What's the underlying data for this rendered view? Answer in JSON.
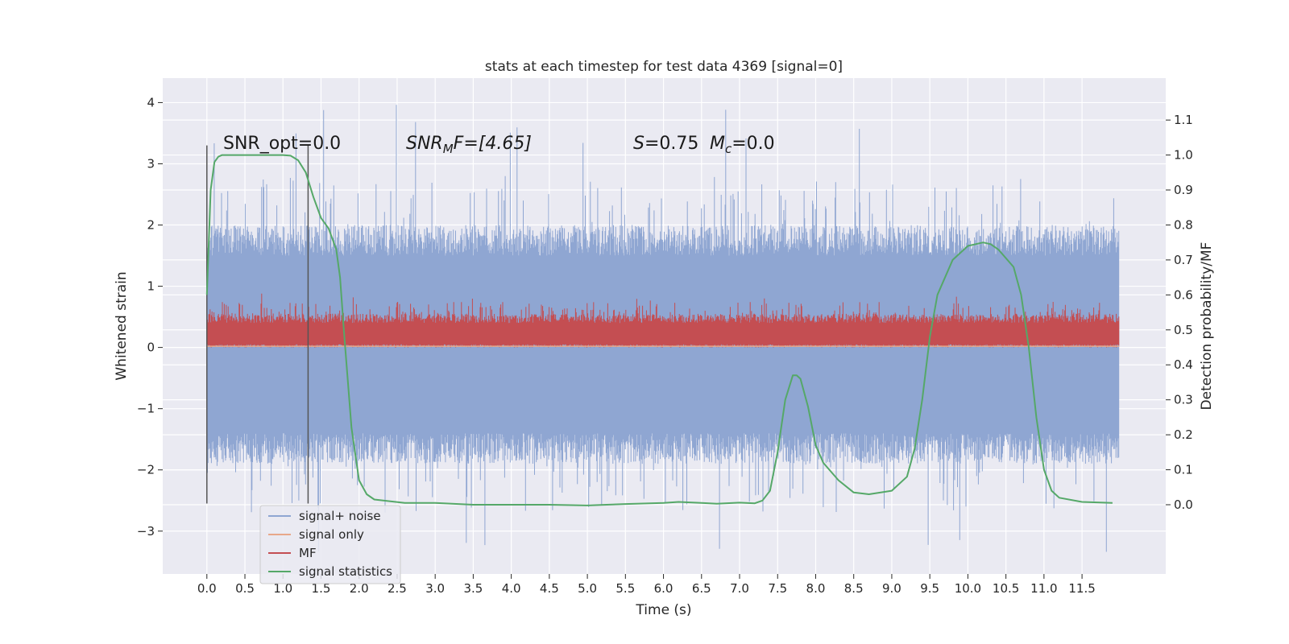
{
  "chart_data": {
    "type": "line",
    "title": "stats at each timestep for test data 4369 [signal=0]",
    "xlabel": "Time (s)",
    "ylabel": "Whitened strain",
    "y2label": "Detection probability/MF",
    "xlim": [
      -0.58,
      12.6
    ],
    "ylim": [
      -3.7,
      4.4
    ],
    "y2lim": [
      -0.198,
      1.22
    ],
    "xticks": [
      "0.0",
      "0.5",
      "1.0",
      "1.5",
      "2.0",
      "2.5",
      "3.0",
      "3.5",
      "4.0",
      "4.5",
      "5.0",
      "5.5",
      "6.0",
      "6.5",
      "7.0",
      "7.5",
      "8.0",
      "8.5",
      "9.0",
      "9.5",
      "10.0",
      "10.5",
      "11.0",
      "11.5"
    ],
    "yticks": [
      "−3",
      "−2",
      "−1",
      "0",
      "1",
      "2",
      "3",
      "4"
    ],
    "y2ticks": [
      "0.0",
      "0.1",
      "0.2",
      "0.3",
      "0.4",
      "0.5",
      "0.6",
      "0.7",
      "0.8",
      "0.9",
      "1.0",
      "1.1"
    ],
    "grid": true,
    "legend_position": "lower-left",
    "annotations": {
      "snr_opt": "SNR_opt=0.0",
      "snr_mf_sym": "SNR",
      "snr_mf_sub": "M",
      "snr_mf_rest": "F=[4.65]",
      "s_sym": "S",
      "s_rest": "=0.75",
      "mc_sym": "M",
      "mc_sub": "c",
      "mc_rest": "=0.0"
    },
    "vlines": [
      0.0,
      1.33
    ],
    "series": [
      {
        "name": "signal+ noise",
        "color": "#8fa6d2",
        "t_range": [
          0.0,
          11.99
        ],
        "envelope_typical": [
          -1.4,
          1.5
        ],
        "envelope_peaks": [
          -3.35,
          4.1
        ]
      },
      {
        "name": "signal only",
        "color": "#e8a88a",
        "t_range": [
          0.0,
          11.99
        ],
        "values_constant": 0.02
      },
      {
        "name": "MF",
        "color": "#c44e52",
        "t_range": [
          0.0,
          11.99
        ],
        "envelope_typical": [
          0.05,
          0.4
        ],
        "envelope_peaks": [
          0.0,
          0.9
        ]
      },
      {
        "name": "signal statistics",
        "color": "#55a868",
        "axis": "right",
        "t": [
          0.0,
          0.05,
          0.1,
          0.15,
          0.2,
          0.3,
          0.5,
          0.8,
          1.0,
          1.1,
          1.2,
          1.3,
          1.4,
          1.5,
          1.6,
          1.7,
          1.75,
          1.8,
          1.9,
          2.0,
          2.1,
          2.2,
          2.4,
          2.6,
          3.0,
          3.5,
          4.0,
          4.5,
          5.0,
          5.5,
          6.0,
          6.2,
          6.5,
          6.7,
          7.0,
          7.2,
          7.3,
          7.4,
          7.5,
          7.6,
          7.7,
          7.75,
          7.8,
          7.9,
          8.0,
          8.1,
          8.3,
          8.5,
          8.7,
          9.0,
          9.2,
          9.3,
          9.4,
          9.5,
          9.6,
          9.8,
          10.0,
          10.2,
          10.3,
          10.4,
          10.6,
          10.7,
          10.8,
          10.9,
          11.0,
          11.1,
          11.2,
          11.5,
          11.9
        ],
        "values": [
          0.6,
          0.9,
          0.98,
          0.995,
          1.0,
          1.0,
          1.0,
          1.0,
          1.0,
          0.998,
          0.985,
          0.95,
          0.88,
          0.82,
          0.79,
          0.73,
          0.65,
          0.5,
          0.22,
          0.07,
          0.03,
          0.015,
          0.01,
          0.005,
          0.005,
          0.0,
          0.0,
          0.0,
          -0.002,
          0.002,
          0.005,
          0.008,
          0.005,
          0.003,
          0.006,
          0.004,
          0.012,
          0.04,
          0.15,
          0.3,
          0.37,
          0.37,
          0.36,
          0.28,
          0.17,
          0.12,
          0.07,
          0.035,
          0.03,
          0.04,
          0.08,
          0.16,
          0.3,
          0.48,
          0.6,
          0.7,
          0.74,
          0.75,
          0.745,
          0.73,
          0.68,
          0.6,
          0.45,
          0.25,
          0.1,
          0.04,
          0.02,
          0.008,
          0.005
        ]
      }
    ]
  }
}
